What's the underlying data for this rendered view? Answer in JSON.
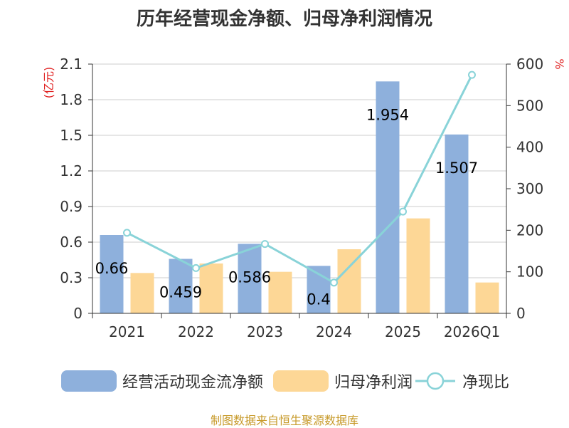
{
  "title": "历年经营现金净额、归母净利润情况",
  "source": "制图数据来自恒生聚源数据库",
  "colors": {
    "bar1": "#8eb0dc",
    "bar2": "#fdd796",
    "line": "#89d3d8",
    "unit": "#e02020",
    "source": "#c79a2a"
  },
  "chart_data": {
    "type": "bar",
    "title": "历年经营现金净额、归母净利润情况",
    "categories": [
      "2021",
      "2022",
      "2023",
      "2024",
      "2025",
      "2026Q1"
    ],
    "y_left": {
      "unit": "(亿元)",
      "min": 0,
      "max": 2.1,
      "ticks": [
        "0",
        "0.3",
        "0.6",
        "0.9",
        "1.2",
        "1.5",
        "1.8",
        "2.1"
      ]
    },
    "y_right": {
      "unit": "%",
      "min": 0,
      "max": 600,
      "ticks": [
        "0",
        "100",
        "200",
        "300",
        "400",
        "500",
        "600"
      ]
    },
    "series": [
      {
        "name": "经营活动现金流净额",
        "type": "bar",
        "axis": "left",
        "values": [
          0.66,
          0.459,
          0.586,
          0.4,
          1.954,
          1.507
        ],
        "labels": [
          "0.66",
          "0.459",
          "0.586",
          "0.4",
          "1.954",
          "1.507"
        ]
      },
      {
        "name": "归母净利润",
        "type": "bar",
        "axis": "left",
        "values": [
          0.34,
          0.42,
          0.35,
          0.54,
          0.8,
          0.26
        ]
      },
      {
        "name": "净现比",
        "type": "line",
        "axis": "right",
        "values": [
          194,
          109,
          167,
          74,
          245,
          574
        ]
      }
    ],
    "grid": true,
    "legend_position": "bottom"
  }
}
